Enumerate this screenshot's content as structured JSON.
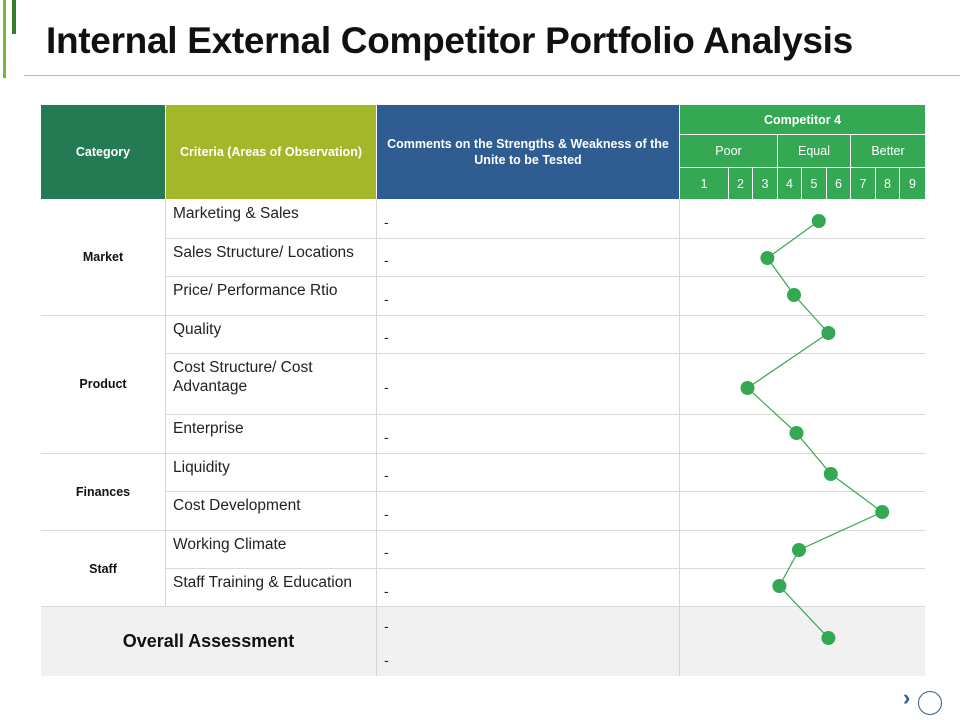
{
  "title": "Internal External Competitor Portfolio Analysis",
  "headers": {
    "category": "Category",
    "criteria": "Criteria (Areas of Observation)",
    "comments": "Comments on the Strengths & Weakness of the Unite to be Tested",
    "competitor": "Competitor 4",
    "bands": [
      "Poor",
      "Equal",
      "Better"
    ],
    "scale": [
      "1",
      "2",
      "3",
      "4",
      "5",
      "6",
      "7",
      "8",
      "9"
    ]
  },
  "groups": [
    "Market",
    "Product",
    "Finances",
    "Staff"
  ],
  "rows": [
    {
      "criteria": "Marketing & Sales",
      "comment": "-"
    },
    {
      "criteria": "Sales Structure/ Locations",
      "comment": "-"
    },
    {
      "criteria": "Price/ Performance Rtio",
      "comment": "-"
    },
    {
      "criteria": "Quality",
      "comment": "-"
    },
    {
      "criteria": "Cost Structure/ Cost Advantage",
      "comment": "-"
    },
    {
      "criteria": "Enterprise",
      "comment": "-"
    },
    {
      "criteria": "Liquidity",
      "comment": "-"
    },
    {
      "criteria": "Cost Development",
      "comment": "-"
    },
    {
      "criteria": "Working Climate",
      "comment": "-"
    },
    {
      "criteria": "Staff Training & Education",
      "comment": "-"
    }
  ],
  "overall": {
    "label": "Overall Assessment",
    "comments": [
      "-",
      "-"
    ]
  },
  "chart_data": {
    "type": "line",
    "categories": [
      "Marketing & Sales",
      "Sales Structure/ Locations",
      "Price/ Performance Rtio",
      "Quality",
      "Cost Structure/ Cost Advantage",
      "Enterprise",
      "Liquidity",
      "Cost Development",
      "Working Climate",
      "Staff Training & Education",
      "Overall Assessment"
    ],
    "values": [
      5.2,
      3.1,
      4.2,
      5.6,
      2.3,
      4.3,
      5.7,
      7.8,
      4.4,
      3.6,
      5.6
    ],
    "xlim": [
      1,
      9
    ],
    "color": "#34a853"
  }
}
